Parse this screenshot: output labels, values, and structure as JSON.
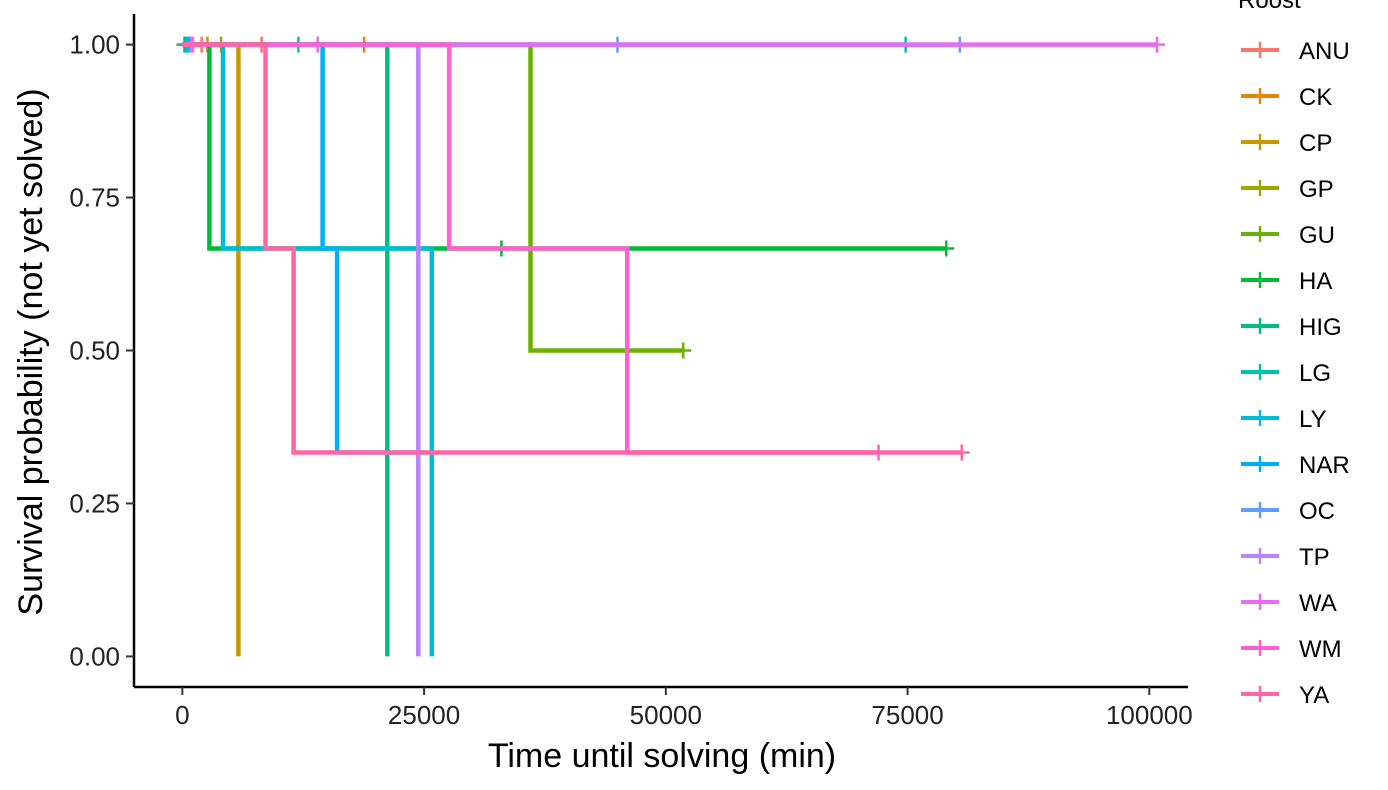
{
  "chart_data": {
    "type": "line",
    "xlabel": "Time until solving (min)",
    "ylabel": "Survival probability (not yet solved)",
    "xlim": [
      -5000,
      104000
    ],
    "ylim": [
      -0.05,
      1.05
    ],
    "x_ticks": [
      0,
      25000,
      50000,
      75000,
      100000
    ],
    "x_tick_labels": [
      "0",
      "25000",
      "50000",
      "75000",
      "100000"
    ],
    "y_ticks": [
      0,
      0.25,
      0.5,
      0.75,
      1.0
    ],
    "y_tick_labels": [
      "0.00",
      "0.25",
      "0.50",
      "0.75",
      "1.00"
    ],
    "grid": false,
    "legend": {
      "title": "Roost",
      "placement": "right"
    },
    "series": [
      {
        "name": "ANU",
        "color": "#F8766D",
        "steps": [
          [
            0,
            1.0
          ],
          [
            8200,
            1.0
          ]
        ],
        "censor": [
          [
            2000,
            1.0
          ],
          [
            8200,
            1.0
          ]
        ]
      },
      {
        "name": "CK",
        "color": "#E58700",
        "steps": [
          [
            0,
            1.0
          ],
          [
            18800,
            1.0
          ]
        ],
        "censor": [
          [
            2600,
            1.0
          ],
          [
            18800,
            1.0
          ]
        ]
      },
      {
        "name": "CP",
        "color": "#C99800",
        "steps": [
          [
            0,
            1.0
          ],
          [
            5800,
            1.0
          ],
          [
            5800,
            0.0
          ]
        ],
        "censor": [
          [
            200,
            1.0
          ]
        ]
      },
      {
        "name": "GP",
        "color": "#A3A500",
        "steps": [
          [
            0,
            1.0
          ],
          [
            4000,
            1.0
          ]
        ],
        "censor": [
          [
            4000,
            1.0
          ]
        ]
      },
      {
        "name": "GU",
        "color": "#6BB100",
        "steps": [
          [
            0,
            1.0
          ],
          [
            36000,
            1.0
          ],
          [
            36000,
            0.5
          ],
          [
            51800,
            0.5
          ]
        ],
        "censor": [
          [
            51800,
            0.5
          ]
        ]
      },
      {
        "name": "HA",
        "color": "#00BA38",
        "steps": [
          [
            0,
            1.0
          ],
          [
            2800,
            1.0
          ],
          [
            2800,
            0.6667
          ],
          [
            79000,
            0.6667
          ]
        ],
        "censor": [
          [
            33000,
            0.6667
          ],
          [
            79000,
            0.6667
          ]
        ]
      },
      {
        "name": "HIG",
        "color": "#00BF7D",
        "steps": [
          [
            0,
            1.0
          ],
          [
            21200,
            1.0
          ],
          [
            21200,
            0.0
          ]
        ],
        "censor": [
          [
            300,
            1.0
          ]
        ]
      },
      {
        "name": "LG",
        "color": "#00C0AF",
        "steps": [
          [
            0,
            1.0
          ],
          [
            74800,
            1.0
          ]
        ],
        "censor": [
          [
            12000,
            1.0
          ],
          [
            74800,
            1.0
          ]
        ]
      },
      {
        "name": "LY",
        "color": "#00BCD8",
        "steps": [
          [
            0,
            1.0
          ],
          [
            4200,
            1.0
          ],
          [
            4200,
            0.6667
          ],
          [
            25800,
            0.6667
          ],
          [
            25800,
            0.0
          ]
        ],
        "censor": [
          [
            500,
            1.0
          ]
        ]
      },
      {
        "name": "NAR",
        "color": "#00B0F6",
        "steps": [
          [
            0,
            1.0
          ],
          [
            14500,
            1.0
          ],
          [
            14500,
            0.6667
          ],
          [
            16000,
            0.6667
          ],
          [
            16000,
            0.3333
          ],
          [
            25000,
            0.3333
          ]
        ],
        "censor": [
          [
            700,
            1.0
          ]
        ]
      },
      {
        "name": "OC",
        "color": "#619CFF",
        "steps": [
          [
            0,
            1.0
          ],
          [
            80400,
            1.0
          ]
        ],
        "censor": [
          [
            45000,
            1.0
          ],
          [
            80400,
            1.0
          ]
        ]
      },
      {
        "name": "TP",
        "color": "#B983FF",
        "steps": [
          [
            0,
            1.0
          ],
          [
            24400,
            1.0
          ],
          [
            24400,
            0.0
          ]
        ],
        "censor": [
          [
            900,
            1.0
          ]
        ]
      },
      {
        "name": "WA",
        "color": "#E76BF3",
        "steps": [
          [
            0,
            1.0
          ],
          [
            100800,
            1.0
          ]
        ],
        "censor": [
          [
            1100,
            1.0
          ],
          [
            14000,
            1.0
          ],
          [
            100800,
            1.0
          ]
        ]
      },
      {
        "name": "WM",
        "color": "#FD61D1",
        "steps": [
          [
            0,
            1.0
          ],
          [
            27600,
            1.0
          ],
          [
            27600,
            0.6667
          ],
          [
            46000,
            0.6667
          ],
          [
            46000,
            0.3333
          ],
          [
            72000,
            0.3333
          ]
        ],
        "censor": [
          [
            72000,
            0.3333
          ]
        ]
      },
      {
        "name": "YA",
        "color": "#FF67A4",
        "steps": [
          [
            0,
            1.0
          ],
          [
            8600,
            1.0
          ],
          [
            8600,
            0.6667
          ],
          [
            11500,
            0.6667
          ],
          [
            11500,
            0.3333
          ],
          [
            80600,
            0.3333
          ]
        ],
        "censor": [
          [
            80600,
            0.3333
          ]
        ]
      }
    ]
  }
}
